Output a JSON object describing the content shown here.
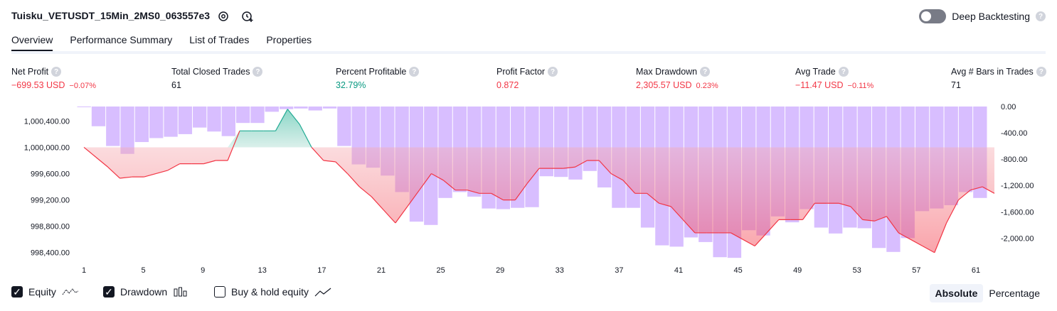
{
  "header": {
    "title": "Tuisku_VETUSDT_15Min_2MS0_063557e3",
    "deep_backtesting_label": "Deep Backtesting",
    "deep_backtesting_on": false
  },
  "tabs": [
    "Overview",
    "Performance Summary",
    "List of Trades",
    "Properties"
  ],
  "metrics": [
    {
      "label": "Net Profit",
      "value": "−699.53 USD",
      "pct": "−0.07%",
      "tone": "neg"
    },
    {
      "label": "Total Closed Trades",
      "value": "61",
      "pct": "",
      "tone": "neu"
    },
    {
      "label": "Percent Profitable",
      "value": "32.79%",
      "pct": "",
      "tone": "pos"
    },
    {
      "label": "Profit Factor",
      "value": "0.872",
      "pct": "",
      "tone": "neg"
    },
    {
      "label": "Max Drawdown",
      "value": "2,305.57 USD",
      "pct": "0.23%",
      "tone": "neg"
    },
    {
      "label": "Avg Trade",
      "value": "−11.47 USD",
      "pct": "−0.11%",
      "tone": "neg"
    },
    {
      "label": "Avg # Bars in Trades",
      "value": "71",
      "pct": "",
      "tone": "neu"
    }
  ],
  "legend": {
    "equity": "Equity",
    "drawdown": "Drawdown",
    "buyhold": "Buy & hold equity",
    "equity_on": true,
    "drawdown_on": true,
    "buyhold_on": false
  },
  "view_modes": [
    "Absolute",
    "Percentage"
  ],
  "selected_view": "Absolute",
  "colors": {
    "neg": "#f23645",
    "pos": "#089981",
    "drawdown": "#d1b3ff",
    "equity_line": "#f23645",
    "equity_line_up": "#22ab94"
  },
  "chart_data": {
    "type": "line",
    "x_ticks": [
      1,
      5,
      9,
      13,
      17,
      21,
      25,
      29,
      33,
      37,
      41,
      45,
      49,
      53,
      57,
      61
    ],
    "y_left_ticks": [
      "1,000,400.00",
      "1,000,000.00",
      "999,600.00",
      "999,200.00",
      "998,800.00",
      "998,400.00"
    ],
    "y_right_ticks": [
      "0.00",
      "-400.00",
      "-800.00",
      "-1,200.00",
      "-1,600.00",
      "-2,000.00"
    ],
    "y_left_range": [
      998300,
      1000620
    ],
    "y_right_range": [
      -2320,
      0
    ],
    "baseline": 1000000,
    "series": [
      {
        "name": "Equity",
        "values": [
          1000000,
          999850,
          999700,
          999530,
          999550,
          999550,
          999600,
          999650,
          999750,
          999750,
          999750,
          999800,
          999800,
          1000250,
          1000250,
          1000250,
          1000250,
          1000580,
          1000350,
          1000000,
          999800,
          999780,
          999600,
          999400,
          999250,
          999050,
          998850,
          999100,
          999350,
          999600,
          999500,
          999350,
          999350,
          999300,
          999300,
          999200,
          999200,
          999450,
          999680,
          999680,
          999680,
          999700,
          999800,
          999800,
          999600,
          999500,
          999300,
          999300,
          999150,
          999100,
          998900,
          998700,
          998700,
          998700,
          998700,
          998600,
          998500,
          998700,
          998900,
          998900,
          998900,
          999150,
          999150,
          999150,
          999100,
          998900,
          998880,
          998950,
          998700,
          998600,
          998500,
          998400,
          998850,
          999200,
          999350,
          999400,
          999300
        ]
      },
      {
        "name": "Drawdown",
        "values": [
          -10,
          -300,
          -600,
          -720,
          -540,
          -480,
          -460,
          -420,
          -320,
          -380,
          -450,
          -250,
          -250,
          -80,
          -40,
          -30,
          -60,
          -30,
          -600,
          -880,
          -930,
          -1050,
          -1300,
          -1750,
          -1800,
          -1390,
          -1300,
          -1370,
          -1550,
          -1560,
          -1540,
          -1530,
          -1060,
          -1070,
          -1110,
          -980,
          -1230,
          -1540,
          -1540,
          -1840,
          -2110,
          -2130,
          -1990,
          -2060,
          -2290,
          -2300,
          -1880,
          -1960,
          -1670,
          -1760,
          -1560,
          -1840,
          -1930,
          -1840,
          -1850,
          -2150,
          -2210,
          -2000,
          -1590,
          -1550,
          -1500,
          -1300,
          -1390
        ]
      }
    ]
  }
}
